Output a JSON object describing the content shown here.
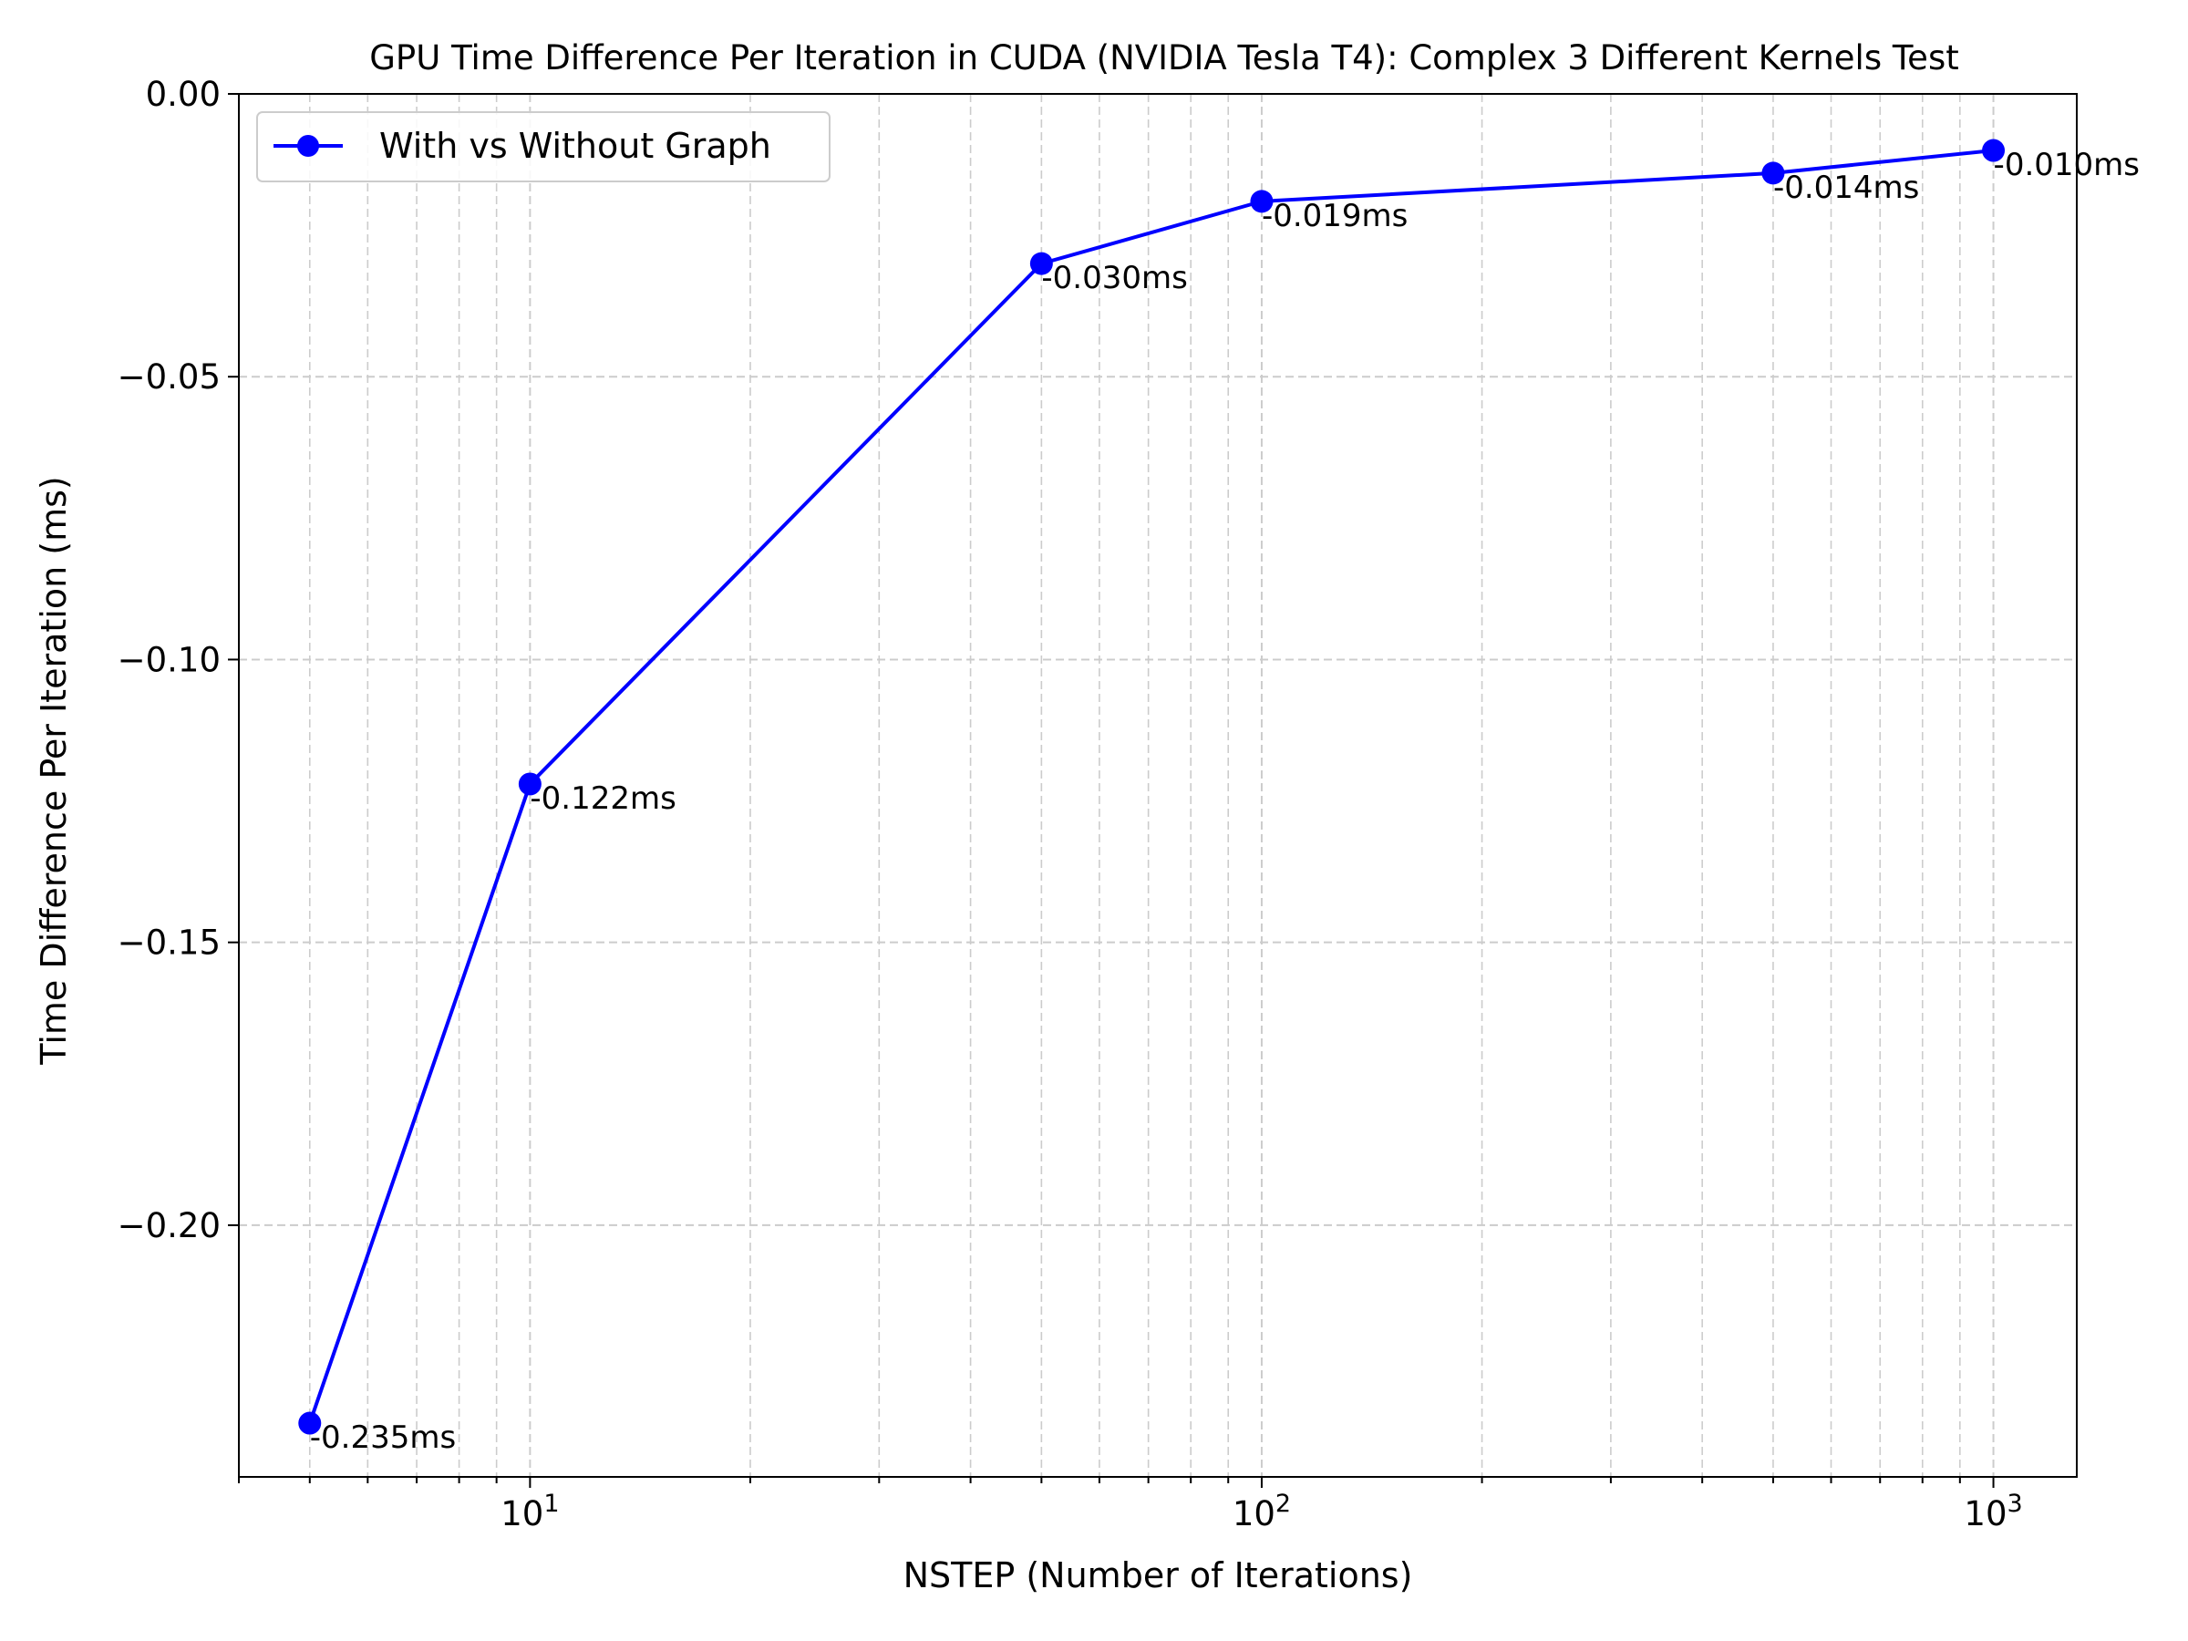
{
  "chart_data": {
    "type": "line",
    "title": "GPU Time Difference Per Iteration in CUDA (NVIDIA Tesla T4): Complex 3 Different Kernels Test",
    "xlabel": "NSTEP (Number of Iterations)",
    "ylabel": "Time Difference Per Iteration (ms)",
    "xscale": "log",
    "xlim": [
      4,
      1300
    ],
    "ylim": [
      -0.2445,
      0.0
    ],
    "grid": true,
    "legend_position": "top-left",
    "x_ticks": [
      {
        "value": 10,
        "base": "10",
        "exp": "1"
      },
      {
        "value": 100,
        "base": "10",
        "exp": "2"
      },
      {
        "value": 1000,
        "base": "10",
        "exp": "3"
      }
    ],
    "y_ticks": [
      {
        "value": 0.0,
        "label": "0.00"
      },
      {
        "value": -0.05,
        "label": "−0.05"
      },
      {
        "value": -0.1,
        "label": "−0.10"
      },
      {
        "value": -0.15,
        "label": "−0.15"
      },
      {
        "value": -0.2,
        "label": "−0.20"
      }
    ],
    "series": [
      {
        "name": "With vs Without Graph",
        "color": "#0000ff",
        "x": [
          5,
          10,
          50,
          100,
          500,
          1000
        ],
        "y": [
          -0.235,
          -0.122,
          -0.03,
          -0.019,
          -0.014,
          -0.01
        ],
        "labels": [
          "-0.235ms",
          "-0.122ms",
          "-0.030ms",
          "-0.019ms",
          "-0.014ms",
          "-0.010ms"
        ]
      }
    ]
  }
}
